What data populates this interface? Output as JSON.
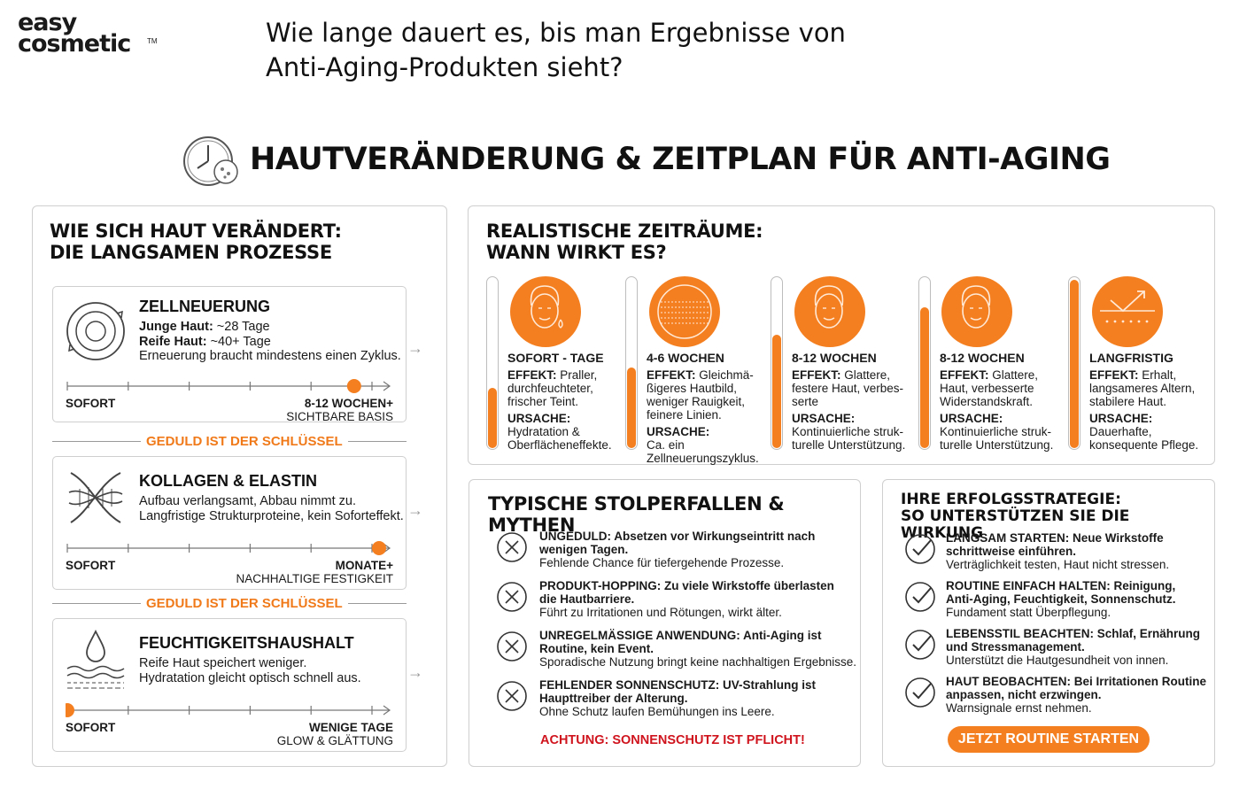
{
  "logo": {
    "line1": "easy",
    "line2": "cosmetic",
    "tm": "TM"
  },
  "question": {
    "line1": "Wie lange dauert es, bis man Ergebnisse von",
    "line2": "Anti-Aging-Produkten sieht?"
  },
  "main_title": "HAUTVERÄNDERUNG & ZEITPLAN FÜR ANTI-AGING",
  "left_panel": {
    "title_line1": "WIE SICH HAUT VERÄNDERT:",
    "title_line2": "DIE LANGSAMEN PROZESSE",
    "divider": "GEDULD IST DER SCHLÜSSEL",
    "cards": [
      {
        "title": "ZELLNEUERUNG",
        "line1_bold": "Junge Haut:",
        "line1_rest": " ~28 Tage",
        "line2_bold": "Reife Haut:",
        "line2_rest": " ~40+ Tage",
        "line3": "Erneuerung braucht mindestens einen Zyklus.",
        "start": "SOFORT",
        "end_bold": "8-12 WOCHEN+",
        "end_sub": "SICHTBARE BASIS",
        "marker": 0.92
      },
      {
        "title": "KOLLAGEN & ELASTIN",
        "line1": "Aufbau verlangsamt, Abbau nimmt zu.",
        "line2": "Langfristige Strukturproteine, kein Soforteffekt.",
        "start": "SOFORT",
        "end_bold": "MONATE+",
        "end_sub": "NACHHALTIGE FESTIGKEIT",
        "marker": 1.0
      },
      {
        "title": "FEUCHTIGKEITSHAUSHALT",
        "line1": "Reife Haut speichert weniger.",
        "line2": "Hydratation gleicht optisch schnell aus.",
        "start": "SOFORT",
        "end_bold": "WENIGE TAGE",
        "end_sub": "GLOW & GLÄTTUNG",
        "marker": 0.0
      }
    ]
  },
  "timeline_panel": {
    "title_line1": "REALISTISCHE ZEITRÄUME:",
    "title_line2": "WANN WIRKT ES?",
    "effect_label": "EFFEKT:",
    "cause_label": "URSACHE:",
    "columns": [
      {
        "heading": "SOFORT - TAGE",
        "effect": [
          "Praller,",
          "durchfeuchteter,",
          "frischer Teint."
        ],
        "cause": [
          "Hydratation &",
          "Oberflächeneffekte."
        ],
        "fill": 0.35,
        "icon": "face-drop-icon"
      },
      {
        "heading": "4-6 WOCHEN",
        "effect": [
          "Gleichmä-",
          "ßigeres Hautbild,",
          "weniger Rauigkeit,",
          "feinere Linien."
        ],
        "cause": [
          "Ca. ein",
          "Zellneuerungszyklus."
        ],
        "fill": 0.47,
        "icon": "skin-texture-icon"
      },
      {
        "heading": "8-12 WOCHEN",
        "effect": [
          "Glattere,",
          "festere Haut, verbes-",
          "serte"
        ],
        "cause": [
          "Kontinuierliche struk-",
          "turelle Unterstützung."
        ],
        "fill": 0.66,
        "icon": "face-lines-icon"
      },
      {
        "heading": "8-12 WOCHEN",
        "effect": [
          "Glattere,",
          "Haut, verbesserte",
          "Widerstandskraft."
        ],
        "cause": [
          "Kontinuierliche struk-",
          "turelle Unterstützung."
        ],
        "fill": 0.82,
        "icon": "face-firm-icon"
      },
      {
        "heading": "LANGFRISTIG",
        "effect": [
          "Erhalt,",
          "langsameres Altern,",
          "stabilere Haut."
        ],
        "cause": [
          "Dauerhafte,",
          "konsequente Pflege."
        ],
        "fill": 0.98,
        "icon": "skin-barrier-icon"
      }
    ]
  },
  "pitfalls_panel": {
    "title": "TYPISCHE STOLPERFALLEN & MYTHEN",
    "items": [
      {
        "bold1": "UNGEDULD: Absetzen vor Wirkungseintritt nach",
        "bold2": "wenigen Tagen.",
        "text": "Fehlende Chance für tiefergehende Prozesse."
      },
      {
        "bold1": "PRODUKT-HOPPING: Zu viele Wirkstoffe überlasten",
        "bold2": "die Hautbarriere.",
        "text": "Führt zu Irritationen und Rötungen, wirkt älter."
      },
      {
        "bold1": "UNREGELMÄSSIGE ANWENDUNG: Anti-Aging ist",
        "bold2": "Routine, kein Event.",
        "text": "Sporadische Nutzung bringt keine nachhaltigen Ergebnisse."
      },
      {
        "bold1": "FEHLENDER SONNENSCHUTZ: UV-Strahlung ist",
        "bold2": "Haupttreiber der Alterung.",
        "text": "Ohne Schutz laufen Bemühungen ins Leere."
      }
    ],
    "warning": "ACHTUNG: SONNENSCHUTZ IST PFLICHT!"
  },
  "strategy_panel": {
    "title_line1": "IHRE ERFOLGSSTRATEGIE:",
    "title_line2": "SO UNTERSTÜTZEN SIE DIE WIRKUNG",
    "items": [
      {
        "bold1": "LANGSAM STARTEN: Neue Wirkstoffe",
        "bold2": "schrittweise einführen.",
        "text": "Verträglichkeit testen, Haut nicht stressen."
      },
      {
        "bold1": "ROUTINE EINFACH HALTEN: Reinigung,",
        "bold2": "Anti-Aging, Feuchtigkeit, Sonnenschutz.",
        "text": "Fundament statt Überpflegung."
      },
      {
        "bold1": "LEBENSSTIL BEACHTEN: Schlaf, Ernährung",
        "bold2": "und Stressmanagement.",
        "text": "Unterstützt die Hautgesundheit von innen."
      },
      {
        "bold1": "HAUT BEOBACHTEN: Bei Irritationen Routine",
        "bold2": "anpassen, nicht erzwingen.",
        "text": "Warnsignale ernst nehmen."
      }
    ],
    "button": "JETZT ROUTINE STARTEN"
  },
  "colors": {
    "accent": "#f47f20",
    "warning": "#d0141e",
    "border": "#cfcfcf"
  }
}
